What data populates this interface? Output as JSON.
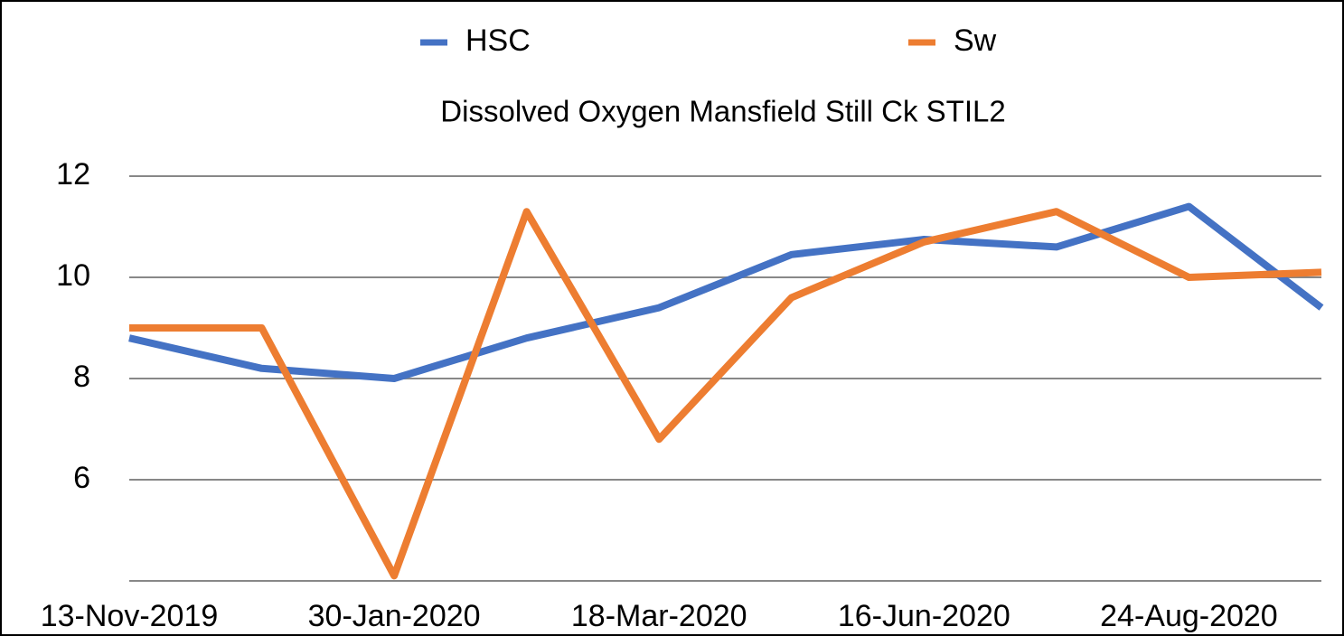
{
  "chart_data": {
    "type": "line",
    "title": "Dissolved Oxygen Mansfield Still Ck STIL2",
    "categories": [
      "13-Nov-2019",
      null,
      "30-Jan-2020",
      null,
      "18-Mar-2020",
      null,
      "16-Jun-2020",
      null,
      "24-Aug-2020",
      null
    ],
    "series": [
      {
        "name": "HSC",
        "color": "#4472c4",
        "values": [
          8.8,
          8.2,
          8.0,
          8.8,
          9.4,
          10.45,
          10.75,
          10.6,
          11.4,
          9.4
        ]
      },
      {
        "name": "Sw",
        "color": "#ed7d31",
        "values": [
          9.0,
          9.0,
          4.1,
          11.3,
          6.8,
          9.6,
          10.7,
          11.3,
          10.0,
          10.1
        ]
      }
    ],
    "ylim": [
      4,
      12
    ],
    "yticks": [
      6,
      8,
      10,
      12
    ],
    "grid": true,
    "legend": "top"
  }
}
